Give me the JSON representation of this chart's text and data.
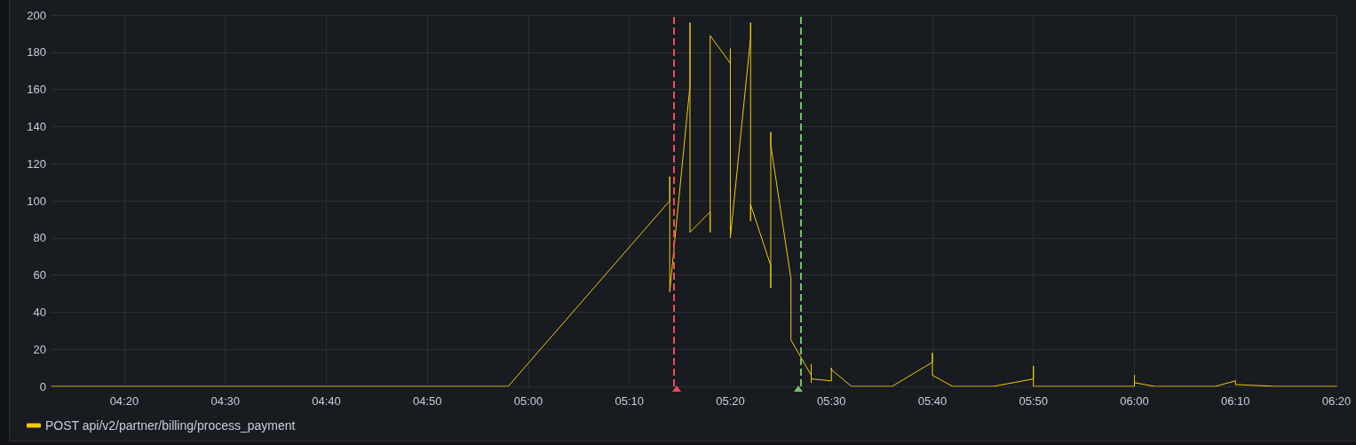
{
  "chart_data": {
    "type": "line",
    "x": [
      4.2133,
      4.9667,
      5.2333,
      5.2333,
      5.2333,
      5.2667,
      5.2667,
      5.2667,
      5.3,
      5.3,
      5.3,
      5.3333,
      5.3333,
      5.3333,
      5.3667,
      5.3667,
      5.3667,
      5.3667,
      5.4,
      5.4,
      5.4,
      5.4,
      5.4333,
      5.4333,
      5.4667,
      5.4667,
      5.4667,
      5.4667,
      5.5,
      5.5,
      5.5,
      5.5333,
      5.6,
      5.6667,
      5.6667,
      5.6667,
      5.7,
      5.7667,
      5.8333,
      5.8333,
      5.8333,
      6,
      6,
      6,
      6.0333,
      6.1333,
      6.1667,
      6.1667,
      6.2333,
      6.3333
    ],
    "series": [
      {
        "name": "POST api/v2/partner/billing/process_payment",
        "color": "#f2cc0c",
        "values": [
          0,
          0,
          100,
          113,
          51,
          162,
          196,
          83,
          94,
          83,
          189,
          174,
          182,
          80,
          188,
          196,
          89,
          98,
          65,
          53,
          137,
          130,
          58,
          25,
          6,
          12,
          2,
          4,
          3,
          10,
          9,
          0,
          0,
          13,
          18,
          6,
          0,
          0,
          4,
          11,
          0,
          0,
          6,
          2,
          0,
          0,
          3,
          1,
          0,
          0
        ]
      }
    ],
    "xlim": [
      4.2133,
      6.3333
    ],
    "xticks": [
      {
        "value": 4.3333,
        "label": "04:20"
      },
      {
        "value": 4.5,
        "label": "04:30"
      },
      {
        "value": 4.6667,
        "label": "04:40"
      },
      {
        "value": 4.8333,
        "label": "04:50"
      },
      {
        "value": 5,
        "label": "05:00"
      },
      {
        "value": 5.1667,
        "label": "05:10"
      },
      {
        "value": 5.3333,
        "label": "05:20"
      },
      {
        "value": 5.5,
        "label": "05:30"
      },
      {
        "value": 5.6667,
        "label": "05:40"
      },
      {
        "value": 5.8333,
        "label": "05:50"
      },
      {
        "value": 6,
        "label": "06:00"
      },
      {
        "value": 6.1667,
        "label": "06:10"
      },
      {
        "value": 6.3333,
        "label": "06:20"
      }
    ],
    "ylim": [
      0,
      200
    ],
    "yticks": [
      0,
      20,
      40,
      60,
      80,
      100,
      120,
      140,
      160,
      180,
      200
    ],
    "grid": true,
    "legend": "bottom left",
    "marker": "none",
    "line_style": "solid",
    "ref_lines": [
      {
        "axis": "x",
        "value": 5.2442,
        "color": "#f2495c",
        "line_style": "dashed"
      },
      {
        "axis": "x",
        "value": 5.4452,
        "color": "#73bf69",
        "line_style": "dashed"
      }
    ]
  }
}
